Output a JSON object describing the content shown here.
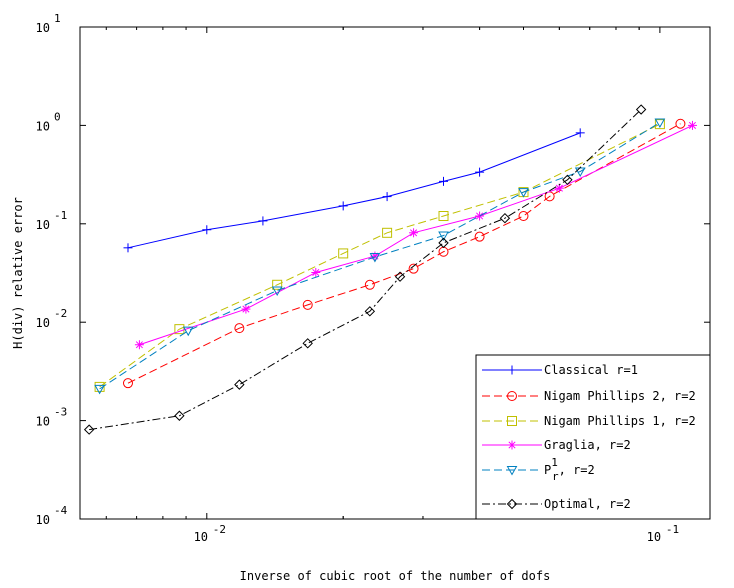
{
  "chart_data": {
    "type": "line",
    "xlabel": "Inverse of cubic root of the number of dofs",
    "ylabel": "H(div) relative error",
    "x_scale": "log",
    "y_scale": "log",
    "xlim": [
      0.00525,
      0.129
    ],
    "ylim": [
      0.0001,
      10
    ],
    "grid": false,
    "legend_position": "lower-right",
    "x_ticks": [
      {
        "value": 0.01,
        "base": "10",
        "exp": "-2"
      },
      {
        "value": 0.1,
        "base": "10",
        "exp": "-1"
      }
    ],
    "y_ticks": [
      {
        "value": 10,
        "base": "10",
        "exp": "1"
      },
      {
        "value": 1,
        "base": "10",
        "exp": "0"
      },
      {
        "value": 0.1,
        "base": "10",
        "exp": "-1"
      },
      {
        "value": 0.01,
        "base": "10",
        "exp": "-2"
      },
      {
        "value": 0.001,
        "base": "10",
        "exp": "-3"
      },
      {
        "value": 0.0001,
        "base": "10",
        "exp": "-4"
      }
    ],
    "series": [
      {
        "name": "Classical r=1",
        "color": "#0000ff",
        "marker": "plus",
        "dash": "",
        "x": [
          0.0067,
          0.01,
          0.0133,
          0.02,
          0.025,
          0.0333,
          0.04,
          0.0667
        ],
        "y": [
          0.057,
          0.087,
          0.107,
          0.152,
          0.189,
          0.27,
          0.335,
          0.84
        ]
      },
      {
        "name": "Nigam Phillips 2, r=2",
        "color": "#ff0000",
        "marker": "circle",
        "dash": "8,4",
        "x": [
          0.0067,
          0.0118,
          0.0167,
          0.0229,
          0.0286,
          0.0333,
          0.04,
          0.05,
          0.0571,
          0.111
        ],
        "y": [
          0.0024,
          0.0087,
          0.015,
          0.024,
          0.035,
          0.052,
          0.074,
          0.12,
          0.19,
          1.04
        ]
      },
      {
        "name": "Nigam Phillips 1, r=2",
        "color": "#c0c000",
        "marker": "square",
        "dash": "8,4",
        "x": [
          0.0058,
          0.0087,
          0.0143,
          0.02,
          0.025,
          0.0333,
          0.05,
          0.1
        ],
        "y": [
          0.0022,
          0.0085,
          0.024,
          0.05,
          0.081,
          0.12,
          0.21,
          1.03
        ]
      },
      {
        "name": "Graglia, r=2",
        "color": "#ff00ff",
        "marker": "asterisk",
        "dash": "",
        "x": [
          0.0071,
          0.0122,
          0.0174,
          0.0235,
          0.0286,
          0.04,
          0.06,
          0.118
        ],
        "y": [
          0.0059,
          0.0136,
          0.032,
          0.047,
          0.081,
          0.12,
          0.23,
          1.0
        ]
      },
      {
        "name": "P",
        "sup": "1",
        "sub": "r",
        "suffix": ", r=2",
        "color": "#0080c0",
        "marker": "triangle-down",
        "dash": "8,4",
        "x": [
          0.0058,
          0.0091,
          0.0143,
          0.0235,
          0.0333,
          0.05,
          0.0667,
          0.1
        ],
        "y": [
          0.0021,
          0.0082,
          0.021,
          0.046,
          0.076,
          0.21,
          0.34,
          1.07
        ]
      },
      {
        "name": "Optimal, r=2",
        "color": "#000000",
        "marker": "diamond",
        "dash": "8,3,2,3",
        "x": [
          0.0055,
          0.0087,
          0.0118,
          0.0167,
          0.0229,
          0.0267,
          0.0333,
          0.0455,
          0.0625,
          0.0909
        ],
        "y": [
          0.00081,
          0.00112,
          0.00232,
          0.0061,
          0.0129,
          0.029,
          0.064,
          0.114,
          0.28,
          1.45
        ]
      }
    ]
  }
}
